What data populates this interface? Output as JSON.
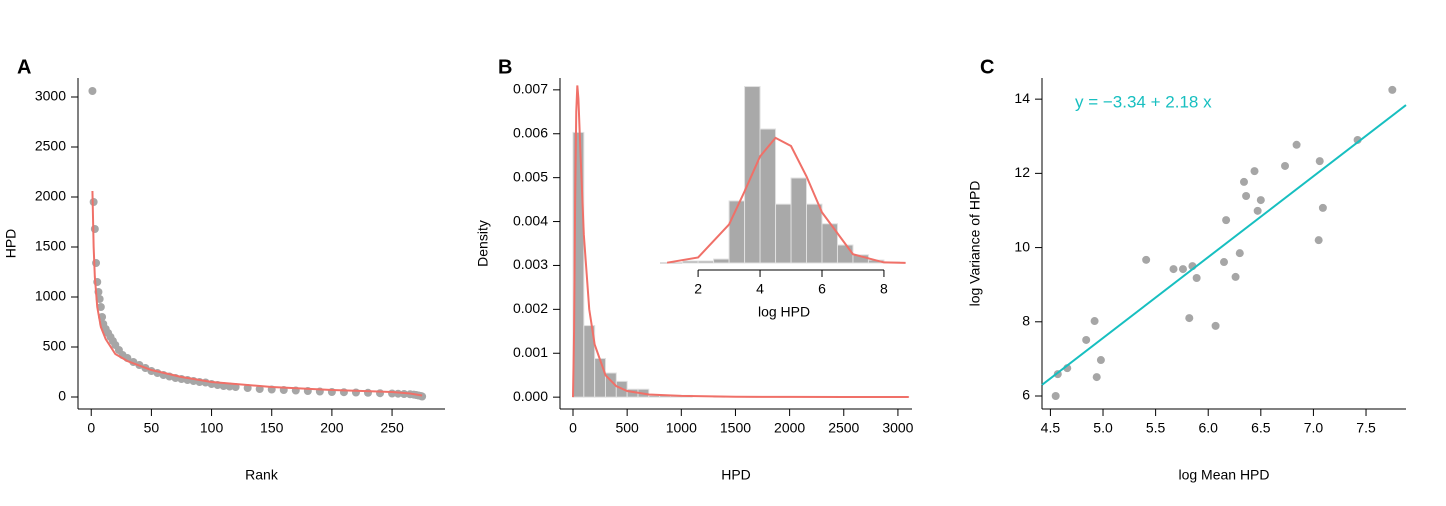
{
  "chart_data": [
    {
      "type": "scatter",
      "title": "A",
      "xlabel": "Rank",
      "ylabel": "HPD",
      "xlim": [
        -11,
        294
      ],
      "ylim": [
        -120,
        3190
      ],
      "xticks": [
        0,
        50,
        100,
        150,
        200,
        250
      ],
      "yticks": [
        0,
        500,
        1000,
        1500,
        2000,
        2500,
        3000
      ],
      "series": [
        {
          "type": "scatter",
          "color": "#a6a6a6",
          "x": [
            1,
            2,
            3,
            4,
            5,
            6,
            7,
            8,
            9,
            10,
            12,
            14,
            16,
            18,
            20,
            23,
            26,
            30,
            35,
            40,
            45,
            50,
            55,
            60,
            65,
            70,
            75,
            80,
            85,
            90,
            95,
            100,
            105,
            110,
            115,
            120,
            130,
            140,
            150,
            160,
            170,
            180,
            190,
            200,
            210,
            220,
            230,
            240,
            250,
            255,
            260,
            265,
            268,
            270,
            272,
            274,
            275
          ],
          "values": [
            3060,
            1950,
            1680,
            1340,
            1150,
            1050,
            980,
            900,
            800,
            730,
            680,
            640,
            600,
            560,
            520,
            470,
            420,
            390,
            350,
            320,
            290,
            260,
            240,
            220,
            205,
            190,
            180,
            170,
            160,
            150,
            145,
            130,
            120,
            110,
            105,
            100,
            90,
            80,
            75,
            70,
            65,
            60,
            55,
            50,
            48,
            45,
            42,
            38,
            35,
            33,
            30,
            27,
            24,
            20,
            15,
            10,
            5
          ]
        },
        {
          "type": "line",
          "color": "#f07068",
          "x": [
            1,
            2,
            3,
            5,
            8,
            12,
            20,
            30,
            50,
            75,
            100,
            150,
            200,
            250,
            265,
            275
          ],
          "values": [
            2060,
            1500,
            1200,
            900,
            700,
            580,
            430,
            360,
            270,
            200,
            150,
            100,
            70,
            50,
            35,
            15
          ]
        }
      ]
    },
    {
      "type": "histogram",
      "title": "B",
      "xlabel": "HPD",
      "ylabel": "Density",
      "xlim": [
        -120,
        3130
      ],
      "ylim": [
        -0.00027,
        0.00727
      ],
      "xticks": [
        0,
        500,
        1000,
        1500,
        2000,
        2500,
        3000
      ],
      "yticks": [
        {
          "value": 0,
          "label": "0.000"
        },
        {
          "value": 0.001,
          "label": "0.001"
        },
        {
          "value": 0.002,
          "label": "0.002"
        },
        {
          "value": 0.003,
          "label": "0.003"
        },
        {
          "value": 0.004,
          "label": "0.004"
        },
        {
          "value": 0.005,
          "label": "0.005"
        },
        {
          "value": 0.006,
          "label": "0.006"
        },
        {
          "value": 0.007,
          "label": "0.007"
        }
      ],
      "color": "#a9a9a9",
      "bins": [
        0,
        100,
        200,
        300,
        400,
        500,
        600,
        700,
        800,
        900,
        1000,
        1100,
        1200,
        1300,
        1400,
        1500,
        1600,
        1700,
        1800,
        1900,
        2000,
        2100,
        2200,
        2300,
        2400,
        2500,
        2600,
        2700,
        2800,
        2900,
        3000,
        3100
      ],
      "values": [
        0.00603,
        0.00163,
        0.00088,
        0.00055,
        0.00036,
        0.00018,
        0.00018,
        4e-05,
        4e-05,
        4e-05,
        4e-05,
        0,
        0,
        1e-05,
        0,
        0,
        1e-05,
        0,
        0,
        1e-05,
        0,
        0,
        0,
        0,
        0,
        0,
        0,
        0,
        0,
        0,
        1e-05
      ],
      "series": [
        {
          "type": "line",
          "color": "#f07068",
          "x": [
            0,
            10,
            20,
            30,
            40,
            50,
            70,
            100,
            150,
            200,
            300,
            400,
            500,
            700,
            1000,
            1500,
            2000,
            2500,
            3000,
            3100
          ],
          "values": [
            0,
            0.0015,
            0.0045,
            0.0065,
            0.0071,
            0.0068,
            0.0055,
            0.0037,
            0.002,
            0.0012,
            0.0005,
            0.00025,
            0.00014,
            6e-05,
            3e-05,
            1e-05,
            5e-06,
            3e-06,
            2e-06,
            2e-06
          ]
        }
      ],
      "inset": {
        "type": "histogram",
        "xlabel": "log HPD",
        "xlim": [
          0.77,
          8.68
        ],
        "ylim": [
          0,
          0.56
        ],
        "xticks": [
          2,
          4,
          6,
          8
        ],
        "color": "#a9a9a9",
        "bins": [
          1.5,
          2,
          2.5,
          3,
          3.5,
          4,
          4.5,
          5,
          5.5,
          6,
          6.5,
          7,
          7.5,
          8,
          8.5
        ],
        "values": [
          0.006,
          0.006,
          0.012,
          0.19,
          0.54,
          0.41,
          0.18,
          0.26,
          0.18,
          0.12,
          0.055,
          0.025,
          0.009,
          0.003
        ],
        "series": [
          {
            "type": "line",
            "color": "#f07068",
            "x": [
              1,
              2,
              3,
              3.5,
              4,
              4.5,
              5,
              5.5,
              6,
              7,
              8,
              8.7
            ],
            "values": [
              0.00095,
              0.0169,
              0.118,
              0.219,
              0.326,
              0.383,
              0.358,
              0.265,
              0.155,
              0.0267,
              0.0018,
              0.0002
            ]
          }
        ]
      }
    },
    {
      "type": "scatter",
      "title": "C",
      "xlabel": "log Mean HPD",
      "ylabel": "log Variance of HPD",
      "xlim": [
        4.42,
        7.88
      ],
      "ylim": [
        5.65,
        14.57
      ],
      "xticks": [
        4.5,
        {
          "value": 5,
          "label": "5.0"
        },
        5.5,
        {
          "value": 6,
          "label": "6.0"
        },
        6.5,
        {
          "value": 7,
          "label": "7.0"
        },
        7.5
      ],
      "yticks": [
        6,
        8,
        10,
        12,
        14
      ],
      "annotation": {
        "text": "y =  −3.34  +  2.18 x",
        "color": "#17bfc0"
      },
      "series": [
        {
          "type": "scatter",
          "color": "#a6a6a6",
          "x": [
            4.55,
            4.57,
            4.66,
            4.84,
            4.92,
            4.94,
            4.98,
            5.41,
            5.67,
            5.76,
            5.85,
            5.89,
            5.82,
            6.07,
            6.15,
            6.17,
            6.26,
            6.3,
            6.34,
            6.36,
            6.44,
            6.47,
            6.5,
            6.73,
            6.84,
            7.06,
            7.05,
            7.09,
            7.42,
            7.75
          ],
          "values": [
            6.0,
            6.59,
            6.75,
            7.51,
            8.02,
            6.51,
            6.97,
            9.67,
            9.42,
            9.42,
            9.5,
            9.18,
            8.1,
            7.89,
            9.61,
            10.74,
            9.21,
            9.85,
            11.77,
            11.39,
            12.06,
            10.99,
            11.28,
            12.2,
            12.77,
            12.33,
            10.2,
            11.07,
            12.9,
            14.25
          ]
        },
        {
          "type": "line",
          "color": "#17bfc0",
          "x": [
            4.42,
            7.88
          ],
          "values": [
            6.3,
            13.84
          ]
        }
      ]
    }
  ]
}
